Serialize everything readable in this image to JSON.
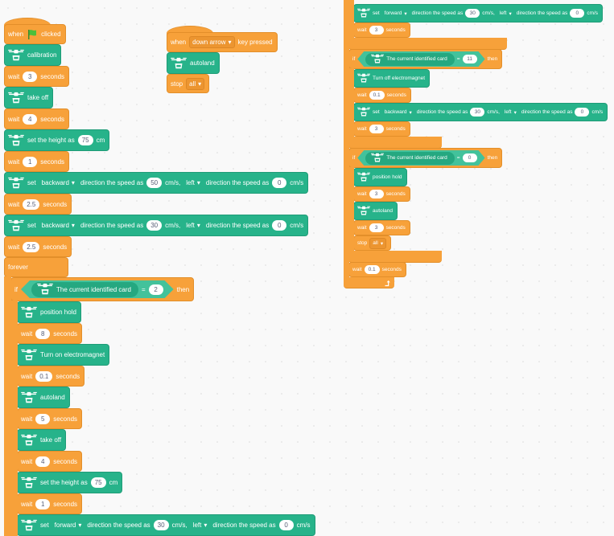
{
  "colors": {
    "control": "#f7a13a",
    "drone": "#27b38a",
    "background": "#f9f9f9"
  },
  "stacks": [
    {
      "name": "green-flag-script",
      "blocks": [
        {
          "kind": "hat",
          "level": 0,
          "parts": [
            {
              "t": "when"
            },
            {
              "icon": "green-flag"
            },
            {
              "t": "clicked"
            }
          ]
        },
        {
          "kind": "drone",
          "level": 0,
          "parts": [
            {
              "icon": "drone"
            },
            {
              "t": "calibration"
            }
          ]
        },
        {
          "kind": "wait",
          "level": 0,
          "parts": [
            {
              "t": "wait"
            },
            {
              "v": "3"
            },
            {
              "t": "seconds"
            }
          ]
        },
        {
          "kind": "drone",
          "level": 0,
          "parts": [
            {
              "icon": "drone"
            },
            {
              "t": "take off"
            }
          ]
        },
        {
          "kind": "wait",
          "level": 0,
          "parts": [
            {
              "t": "wait"
            },
            {
              "v": "4"
            },
            {
              "t": "seconds"
            }
          ]
        },
        {
          "kind": "drone",
          "level": 0,
          "parts": [
            {
              "icon": "drone"
            },
            {
              "t": "set the height as"
            },
            {
              "v": "75"
            },
            {
              "t": "cm"
            }
          ]
        },
        {
          "kind": "wait",
          "level": 0,
          "parts": [
            {
              "t": "wait"
            },
            {
              "v": "1"
            },
            {
              "t": "seconds"
            }
          ]
        },
        {
          "kind": "drone",
          "level": 0,
          "parts": [
            {
              "icon": "drone"
            },
            {
              "t": "set"
            },
            {
              "d": "backward"
            },
            {
              "t": "direction the speed as"
            },
            {
              "v": "50"
            },
            {
              "t": "cm/s,"
            },
            {
              "d": "left"
            },
            {
              "t": "direction the speed as"
            },
            {
              "v": "0"
            },
            {
              "t": "cm/s"
            }
          ]
        },
        {
          "kind": "wait",
          "level": 0,
          "parts": [
            {
              "t": "wait"
            },
            {
              "v": "2.5"
            },
            {
              "t": "seconds"
            }
          ]
        },
        {
          "kind": "drone",
          "level": 0,
          "parts": [
            {
              "icon": "drone"
            },
            {
              "t": "set"
            },
            {
              "d": "backward"
            },
            {
              "t": "direction the speed as"
            },
            {
              "v": "30"
            },
            {
              "t": "cm/s,"
            },
            {
              "d": "left"
            },
            {
              "t": "direction the speed as"
            },
            {
              "v": "0"
            },
            {
              "t": "cm/s"
            }
          ]
        },
        {
          "kind": "wait",
          "level": 0,
          "parts": [
            {
              "t": "wait"
            },
            {
              "v": "2.5"
            },
            {
              "t": "seconds"
            }
          ]
        },
        {
          "kind": "forever",
          "level": 0,
          "parts": [
            {
              "t": "forever"
            }
          ]
        },
        {
          "kind": "if",
          "level": 1,
          "parts": [
            {
              "t": "if"
            },
            {
              "cond": [
                {
                  "icon": "drone"
                },
                {
                  "t": "The current identified card"
                }
              ],
              "op": "=",
              "v": "2"
            },
            {
              "t": "then"
            }
          ]
        },
        {
          "kind": "drone",
          "level": 2,
          "parts": [
            {
              "icon": "drone"
            },
            {
              "t": "position hold"
            }
          ]
        },
        {
          "kind": "wait",
          "level": 2,
          "parts": [
            {
              "t": "wait"
            },
            {
              "v": "8"
            },
            {
              "t": "seconds"
            }
          ]
        },
        {
          "kind": "drone",
          "level": 2,
          "parts": [
            {
              "icon": "drone"
            },
            {
              "t": "Turn on electromagnet"
            }
          ]
        },
        {
          "kind": "wait",
          "level": 2,
          "parts": [
            {
              "t": "wait"
            },
            {
              "v": "0.1"
            },
            {
              "t": "seconds"
            }
          ]
        },
        {
          "kind": "drone",
          "level": 2,
          "parts": [
            {
              "icon": "drone"
            },
            {
              "t": "autoland"
            }
          ]
        },
        {
          "kind": "wait",
          "level": 2,
          "parts": [
            {
              "t": "wait"
            },
            {
              "v": "5"
            },
            {
              "t": "seconds"
            }
          ]
        },
        {
          "kind": "drone",
          "level": 2,
          "parts": [
            {
              "icon": "drone"
            },
            {
              "t": "take off"
            }
          ]
        },
        {
          "kind": "wait",
          "level": 2,
          "parts": [
            {
              "t": "wait"
            },
            {
              "v": "4"
            },
            {
              "t": "seconds"
            }
          ]
        },
        {
          "kind": "drone",
          "level": 2,
          "parts": [
            {
              "icon": "drone"
            },
            {
              "t": "set the height as"
            },
            {
              "v": "75"
            },
            {
              "t": "cm"
            }
          ]
        },
        {
          "kind": "wait",
          "level": 2,
          "parts": [
            {
              "t": "wait"
            },
            {
              "v": "1"
            },
            {
              "t": "seconds"
            }
          ]
        },
        {
          "kind": "drone",
          "level": 2,
          "parts": [
            {
              "icon": "drone"
            },
            {
              "t": "set"
            },
            {
              "d": "forward"
            },
            {
              "t": "direction the speed as"
            },
            {
              "v": "30"
            },
            {
              "t": "cm/s,"
            },
            {
              "d": "left"
            },
            {
              "t": "direction the speed as"
            },
            {
              "v": "0"
            },
            {
              "t": "cm/s"
            }
          ]
        }
      ]
    },
    {
      "name": "key-pressed-script",
      "blocks": [
        {
          "kind": "hat",
          "level": 0,
          "parts": [
            {
              "t": "when"
            },
            {
              "d": "down arrow"
            },
            {
              "t": "key pressed"
            }
          ]
        },
        {
          "kind": "drone",
          "level": 0,
          "parts": [
            {
              "icon": "drone"
            },
            {
              "t": "autoland"
            }
          ]
        },
        {
          "kind": "stop",
          "level": 0,
          "parts": [
            {
              "t": "stop"
            },
            {
              "d": "all"
            }
          ]
        }
      ]
    },
    {
      "name": "continued-script",
      "blocks": [
        {
          "kind": "drone",
          "level": 2,
          "parts": [
            {
              "icon": "drone"
            },
            {
              "t": "set"
            },
            {
              "d": "forward"
            },
            {
              "t": "direction the speed as"
            },
            {
              "v": "30"
            },
            {
              "t": "cm/s,"
            },
            {
              "d": "left"
            },
            {
              "t": "direction the speed as"
            },
            {
              "v": "0"
            },
            {
              "t": "cm/s"
            }
          ]
        },
        {
          "kind": "wait",
          "level": 2,
          "parts": [
            {
              "t": "wait"
            },
            {
              "v": "3"
            },
            {
              "t": "seconds"
            }
          ]
        },
        {
          "kind": "end",
          "level": 1,
          "parts": []
        },
        {
          "kind": "if",
          "level": 1,
          "parts": [
            {
              "t": "if"
            },
            {
              "cond": [
                {
                  "icon": "drone"
                },
                {
                  "t": "The current identified card"
                }
              ],
              "op": "=",
              "v": "11"
            },
            {
              "t": "then"
            }
          ]
        },
        {
          "kind": "drone",
          "level": 2,
          "parts": [
            {
              "icon": "drone"
            },
            {
              "t": "Turn off electromagnet"
            }
          ]
        },
        {
          "kind": "wait",
          "level": 2,
          "parts": [
            {
              "t": "wait"
            },
            {
              "v": "0.1"
            },
            {
              "t": "seconds"
            }
          ]
        },
        {
          "kind": "drone",
          "level": 2,
          "parts": [
            {
              "icon": "drone"
            },
            {
              "t": "set"
            },
            {
              "d": "backward"
            },
            {
              "t": "direction the speed as"
            },
            {
              "v": "30"
            },
            {
              "t": "cm/s,"
            },
            {
              "d": "left"
            },
            {
              "t": "direction the speed as"
            },
            {
              "v": "0"
            },
            {
              "t": "cm/s"
            }
          ]
        },
        {
          "kind": "wait",
          "level": 2,
          "parts": [
            {
              "t": "wait"
            },
            {
              "v": "3"
            },
            {
              "t": "seconds"
            }
          ]
        },
        {
          "kind": "end",
          "level": 1,
          "parts": []
        },
        {
          "kind": "if",
          "level": 1,
          "parts": [
            {
              "t": "if"
            },
            {
              "cond": [
                {
                  "icon": "drone"
                },
                {
                  "t": "The current identified card"
                }
              ],
              "op": "=",
              "v": "0"
            },
            {
              "t": "then"
            }
          ]
        },
        {
          "kind": "drone",
          "level": 2,
          "parts": [
            {
              "icon": "drone"
            },
            {
              "t": "position hold"
            }
          ]
        },
        {
          "kind": "wait",
          "level": 2,
          "parts": [
            {
              "t": "wait"
            },
            {
              "v": "3"
            },
            {
              "t": "seconds"
            }
          ]
        },
        {
          "kind": "drone",
          "level": 2,
          "parts": [
            {
              "icon": "drone"
            },
            {
              "t": "autoland"
            }
          ]
        },
        {
          "kind": "wait",
          "level": 2,
          "parts": [
            {
              "t": "wait"
            },
            {
              "v": "3"
            },
            {
              "t": "seconds"
            }
          ]
        },
        {
          "kind": "stop",
          "level": 2,
          "parts": [
            {
              "t": "stop"
            },
            {
              "d": "all"
            }
          ]
        },
        {
          "kind": "end",
          "level": 1,
          "parts": []
        },
        {
          "kind": "wait",
          "level": 1,
          "parts": [
            {
              "t": "wait"
            },
            {
              "v": "0.1"
            },
            {
              "t": "seconds"
            }
          ]
        },
        {
          "kind": "end",
          "level": 0,
          "parts": [
            {
              "icon": "loop-arrow"
            }
          ]
        }
      ]
    }
  ]
}
